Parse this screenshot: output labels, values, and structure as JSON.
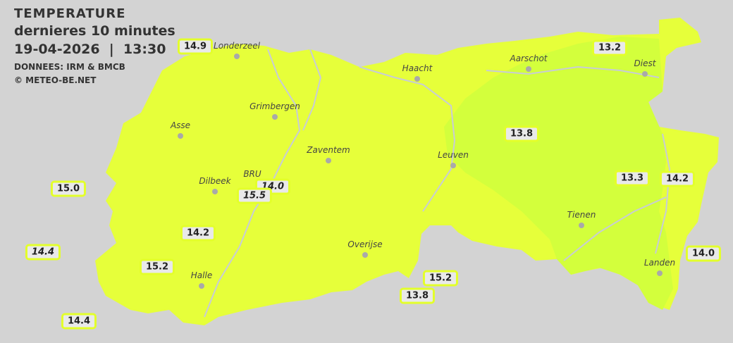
{
  "header": {
    "title": "TEMPERATURE",
    "subtitle": "dernieres 10 minutes",
    "datetime": "19-04-2026  |  13:30",
    "source": "DONNEES: IRM & BMCB",
    "copyright": "© METEO-BE.NET"
  },
  "colors": {
    "background": "#d3d3d3",
    "zone_warm": "#e6ff3a",
    "zone_cool": "#d3ff3c",
    "station_border": "#e3ff2a"
  },
  "cities": [
    {
      "name": "Londerzeel"
    },
    {
      "name": "Haacht"
    },
    {
      "name": "Aarschot"
    },
    {
      "name": "Diest"
    },
    {
      "name": "Grimbergen"
    },
    {
      "name": "Asse"
    },
    {
      "name": "Zaventem"
    },
    {
      "name": "Leuven"
    },
    {
      "name": "Dilbeek"
    },
    {
      "name": "BRU"
    },
    {
      "name": "Tienen"
    },
    {
      "name": "Overijse"
    },
    {
      "name": "Halle"
    },
    {
      "name": "Landen"
    }
  ],
  "stations": [
    {
      "value": "14.9",
      "italic": false
    },
    {
      "value": "13.2",
      "italic": false
    },
    {
      "value": "13.8",
      "italic": false
    },
    {
      "value": "15.0",
      "italic": false
    },
    {
      "value": "14.0",
      "italic": true
    },
    {
      "value": "15.5",
      "italic": true
    },
    {
      "value": "13.3",
      "italic": false
    },
    {
      "value": "14.2",
      "italic": false
    },
    {
      "value": "14.2",
      "italic": false
    },
    {
      "value": "14.4",
      "italic": true
    },
    {
      "value": "14.0",
      "italic": false
    },
    {
      "value": "15.2",
      "italic": false
    },
    {
      "value": "15.2",
      "italic": false
    },
    {
      "value": "13.8",
      "italic": false
    },
    {
      "value": "14.4",
      "italic": false
    }
  ]
}
